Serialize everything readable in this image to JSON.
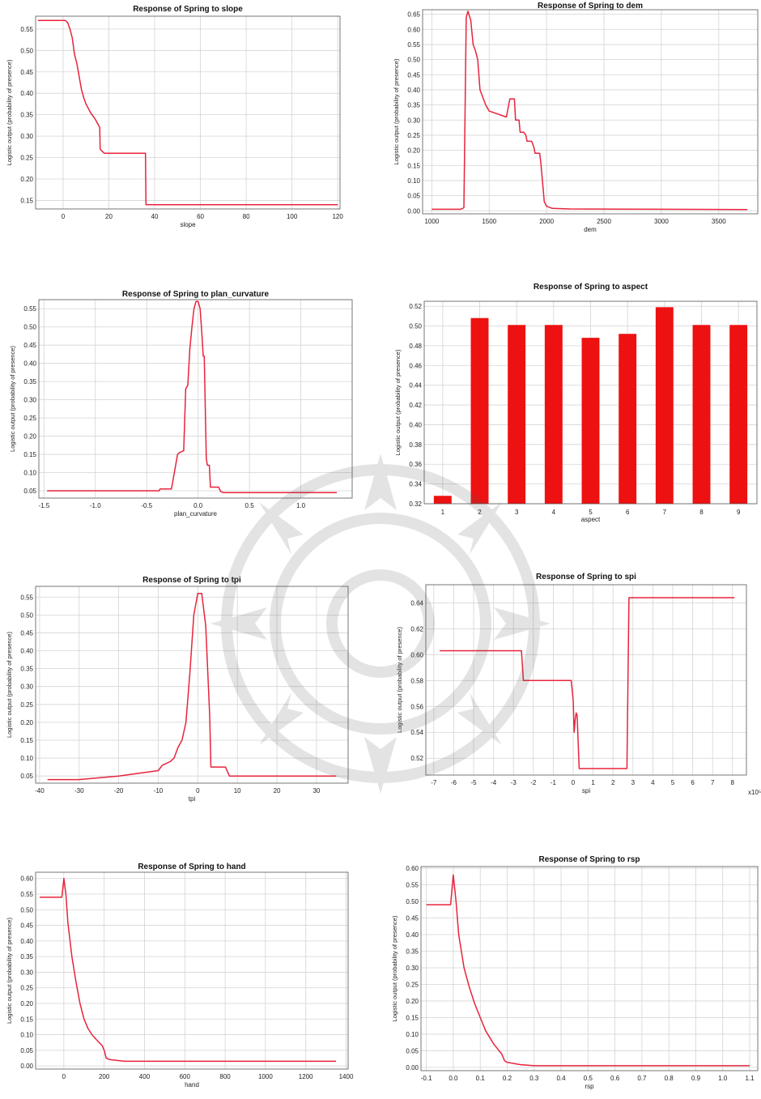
{
  "colors": {
    "curve": "#e8233c",
    "bar": "#ee1111"
  },
  "chart_data": [
    {
      "id": "slope",
      "type": "line",
      "title": "Response of Spring to slope",
      "xlabel": "slope",
      "ylabel": "Logistic output (probability of presence)",
      "xlim": [
        -12,
        121
      ],
      "ylim": [
        0.13,
        0.58
      ],
      "xticks": [
        0,
        20,
        40,
        60,
        80,
        100,
        120
      ],
      "yticks": [
        0.15,
        0.2,
        0.25,
        0.3,
        0.35,
        0.4,
        0.45,
        0.5,
        0.55
      ],
      "x": [
        -11,
        1,
        2,
        3,
        4,
        5,
        6,
        7,
        8,
        9,
        10,
        12,
        14,
        16,
        16.2,
        17,
        18,
        20,
        30,
        36,
        36.2,
        120
      ],
      "y": [
        0.57,
        0.57,
        0.565,
        0.55,
        0.53,
        0.49,
        0.47,
        0.44,
        0.41,
        0.39,
        0.375,
        0.355,
        0.34,
        0.32,
        0.27,
        0.265,
        0.26,
        0.26,
        0.26,
        0.26,
        0.14,
        0.14
      ]
    },
    {
      "id": "dem",
      "type": "line",
      "title": "Response of Spring to dem",
      "xlabel": "dem",
      "ylabel": "Logistic output (probability of presence)",
      "xlim": [
        920,
        3840
      ],
      "ylim": [
        -0.01,
        0.665
      ],
      "xticks": [
        1000,
        1500,
        2000,
        2500,
        3000,
        3500
      ],
      "yticks": [
        0.0,
        0.05,
        0.1,
        0.15,
        0.2,
        0.25,
        0.3,
        0.35,
        0.4,
        0.45,
        0.5,
        0.55,
        0.6,
        0.65
      ],
      "x": [
        1000,
        1250,
        1280,
        1300,
        1315,
        1340,
        1360,
        1380,
        1400,
        1420,
        1440,
        1470,
        1500,
        1650,
        1660,
        1680,
        1720,
        1730,
        1760,
        1770,
        1800,
        1820,
        1830,
        1870,
        1890,
        1900,
        1940,
        1950,
        1980,
        2000,
        2050,
        2200,
        3000,
        3750
      ],
      "y": [
        0.005,
        0.005,
        0.01,
        0.64,
        0.66,
        0.63,
        0.55,
        0.53,
        0.5,
        0.4,
        0.38,
        0.35,
        0.33,
        0.31,
        0.33,
        0.37,
        0.37,
        0.3,
        0.3,
        0.26,
        0.26,
        0.25,
        0.23,
        0.23,
        0.21,
        0.19,
        0.19,
        0.16,
        0.03,
        0.015,
        0.008,
        0.006,
        0.005,
        0.004
      ]
    },
    {
      "id": "plan_curvature",
      "type": "line",
      "title": "Response of Spring to plan_curvature",
      "xlabel": "plan_curvature",
      "ylabel": "Logistic output (probability of presence)",
      "xlim": [
        -1.55,
        1.5
      ],
      "ylim": [
        0.03,
        0.575
      ],
      "xticks": [
        -1.5,
        -1.0,
        -0.5,
        0.0,
        0.5,
        1.0
      ],
      "xtick_labels": [
        "-1.5",
        "-1.0",
        "-0.5",
        "0.0",
        "0.5",
        "1.0"
      ],
      "yticks": [
        0.05,
        0.1,
        0.15,
        0.2,
        0.25,
        0.3,
        0.35,
        0.4,
        0.45,
        0.5,
        0.55
      ],
      "x": [
        -1.47,
        -0.38,
        -0.37,
        -0.26,
        -0.25,
        -0.2,
        -0.18,
        -0.14,
        -0.12,
        -0.1,
        -0.08,
        -0.06,
        -0.04,
        -0.02,
        0.0,
        0.02,
        0.04,
        0.05,
        0.06,
        0.08,
        0.09,
        0.11,
        0.12,
        0.2,
        0.22,
        0.25,
        1.35
      ],
      "y": [
        0.05,
        0.05,
        0.055,
        0.055,
        0.07,
        0.15,
        0.155,
        0.16,
        0.33,
        0.34,
        0.44,
        0.5,
        0.55,
        0.57,
        0.57,
        0.55,
        0.47,
        0.42,
        0.42,
        0.14,
        0.12,
        0.12,
        0.06,
        0.06,
        0.048,
        0.045,
        0.045
      ]
    },
    {
      "id": "aspect",
      "type": "bar",
      "title": "Response of Spring to aspect",
      "xlabel": "aspect",
      "ylabel": "Logistic output (probability of presence)",
      "ylim": [
        0.32,
        0.525
      ],
      "yticks": [
        0.32,
        0.34,
        0.36,
        0.38,
        0.4,
        0.42,
        0.44,
        0.46,
        0.48,
        0.5,
        0.52
      ],
      "categories": [
        "1",
        "2",
        "3",
        "4",
        "5",
        "6",
        "7",
        "8",
        "9"
      ],
      "values": [
        0.328,
        0.508,
        0.501,
        0.501,
        0.488,
        0.492,
        0.519,
        0.501,
        0.501
      ]
    },
    {
      "id": "tpi",
      "type": "line",
      "title": "Response of Spring to tpi",
      "xlabel": "tpi",
      "ylabel": "Logistic output (probability of presence)",
      "xlim": [
        -41,
        38
      ],
      "ylim": [
        0.03,
        0.58
      ],
      "xticks": [
        -40,
        -30,
        -20,
        -10,
        0,
        10,
        20,
        30
      ],
      "yticks": [
        0.05,
        0.1,
        0.15,
        0.2,
        0.25,
        0.3,
        0.35,
        0.4,
        0.45,
        0.5,
        0.55
      ],
      "x": [
        -38,
        -30,
        -20,
        -10,
        -9,
        -7,
        -6,
        -5,
        -4,
        -3,
        -2,
        -1,
        0,
        1,
        2,
        3,
        3.3,
        7,
        8,
        35
      ],
      "y": [
        0.04,
        0.04,
        0.05,
        0.065,
        0.08,
        0.09,
        0.1,
        0.13,
        0.15,
        0.2,
        0.34,
        0.5,
        0.56,
        0.56,
        0.47,
        0.22,
        0.075,
        0.075,
        0.05,
        0.05
      ]
    },
    {
      "id": "spi",
      "type": "line",
      "title": "Response of Spring to spi",
      "xlabel": "spi",
      "ylabel": "Logistic output (probability of presence)",
      "x_multiplier_label": "x10⁵",
      "xlim": [
        -7.4,
        8.7
      ],
      "ylim": [
        0.507,
        0.654
      ],
      "xticks": [
        -7,
        -6,
        -5,
        -4,
        -3,
        -2,
        -1,
        0,
        1,
        2,
        3,
        4,
        5,
        6,
        7,
        8
      ],
      "yticks": [
        0.52,
        0.54,
        0.56,
        0.58,
        0.6,
        0.62,
        0.64
      ],
      "x": [
        -6.7,
        -2.6,
        -2.5,
        -0.1,
        0,
        0.05,
        0.1,
        0.15,
        0.2,
        0.3,
        0.35,
        2.7,
        2.8,
        8.1
      ],
      "y": [
        0.603,
        0.603,
        0.58,
        0.58,
        0.565,
        0.54,
        0.55,
        0.555,
        0.553,
        0.512,
        0.512,
        0.512,
        0.644,
        0.644
      ]
    },
    {
      "id": "hand",
      "type": "line",
      "title": "Response of Spring to hand",
      "xlabel": "hand",
      "ylabel": "Logistic output (probability of presence)",
      "xlim": [
        -140,
        1410
      ],
      "ylim": [
        -0.01,
        0.62
      ],
      "xticks": [
        0,
        200,
        400,
        600,
        800,
        1000,
        1200,
        1400
      ],
      "yticks": [
        0.0,
        0.05,
        0.1,
        0.15,
        0.2,
        0.25,
        0.3,
        0.35,
        0.4,
        0.45,
        0.5,
        0.55,
        0.6
      ],
      "x": [
        -120,
        -10,
        0,
        10,
        20,
        40,
        60,
        80,
        100,
        120,
        140,
        160,
        190,
        200,
        210,
        230,
        300,
        1350
      ],
      "y": [
        0.54,
        0.54,
        0.6,
        0.55,
        0.46,
        0.35,
        0.27,
        0.2,
        0.15,
        0.12,
        0.1,
        0.085,
        0.065,
        0.05,
        0.025,
        0.02,
        0.015,
        0.015
      ]
    },
    {
      "id": "rsp",
      "type": "line",
      "title": "Response of Spring to rsp",
      "xlabel": "rsp",
      "ylabel": "Logistic output (probability of presence)",
      "xlim": [
        -0.12,
        1.13
      ],
      "ylim": [
        -0.01,
        0.605
      ],
      "xticks": [
        -0.1,
        0.0,
        0.1,
        0.2,
        0.3,
        0.4,
        0.5,
        0.6,
        0.7,
        0.8,
        0.9,
        1.0,
        1.1
      ],
      "xtick_labels": [
        "-0.1",
        "0.0",
        "0.1",
        "0.2",
        "0.3",
        "0.4",
        "0.5",
        "0.6",
        "0.7",
        "0.8",
        "0.9",
        "1.0",
        "1.1"
      ],
      "yticks": [
        0.0,
        0.05,
        0.1,
        0.15,
        0.2,
        0.25,
        0.3,
        0.35,
        0.4,
        0.45,
        0.5,
        0.55,
        0.6
      ],
      "x": [
        -0.1,
        -0.01,
        0.0,
        0.01,
        0.02,
        0.04,
        0.06,
        0.08,
        0.1,
        0.12,
        0.15,
        0.18,
        0.19,
        0.2,
        0.25,
        0.3,
        1.1
      ],
      "y": [
        0.49,
        0.49,
        0.58,
        0.5,
        0.4,
        0.3,
        0.24,
        0.19,
        0.15,
        0.11,
        0.07,
        0.04,
        0.02,
        0.015,
        0.008,
        0.005,
        0.005
      ]
    }
  ]
}
